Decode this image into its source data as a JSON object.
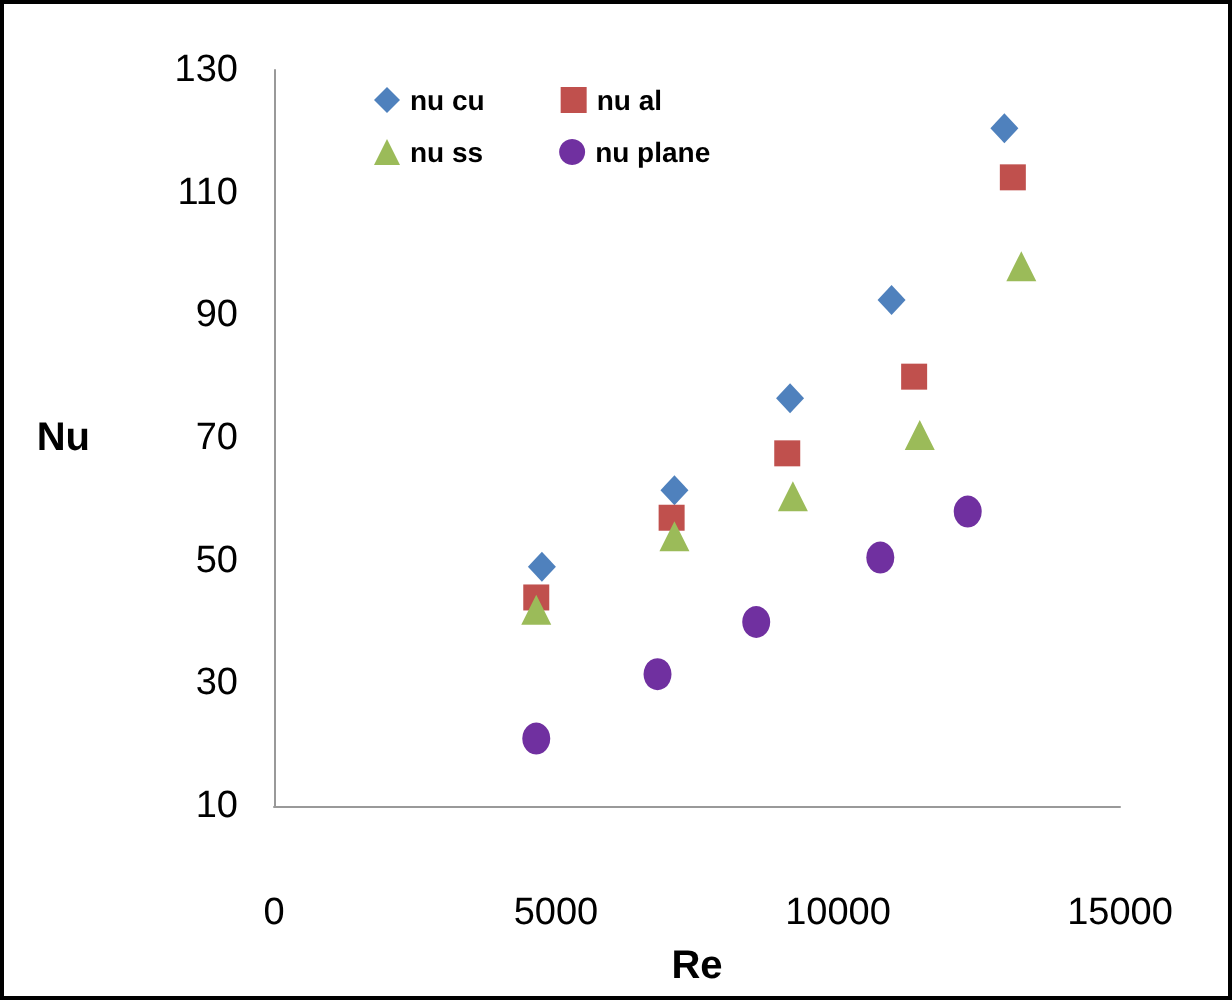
{
  "chart_data": {
    "type": "scatter",
    "xlabel": "Re",
    "ylabel": "Nu",
    "xlim": [
      0,
      15000
    ],
    "xticks": [
      0,
      5000,
      10000,
      15000
    ],
    "ylim": [
      10,
      130
    ],
    "yticks": [
      10,
      30,
      50,
      70,
      90,
      110,
      130
    ],
    "grid": false,
    "legend": "top left",
    "series": [
      {
        "name": "nu cu",
        "color": "#4f81bd",
        "marker": "diamond",
        "x": [
          4750,
          7100,
          9150,
          10950,
          12950
        ],
        "values": [
          49,
          61.5,
          76.5,
          92.5,
          120.5
        ]
      },
      {
        "name": "nu al",
        "color": "#c0504d",
        "marker": "square",
        "x": [
          4650,
          7050,
          9100,
          11350,
          13100
        ],
        "values": [
          44,
          57,
          67.5,
          80,
          112.5
        ]
      },
      {
        "name": "nu ss",
        "color": "#9bbb59",
        "marker": "triangle",
        "x": [
          4650,
          7100,
          9200,
          11450,
          13250
        ],
        "values": [
          42,
          54,
          60.5,
          70.5,
          98
        ]
      },
      {
        "name": "nu plane",
        "color": "#7030a0",
        "marker": "circle",
        "x": [
          4650,
          6800,
          8550,
          10750,
          12300
        ],
        "values": [
          21,
          31.5,
          40,
          50.5,
          58
        ]
      }
    ]
  }
}
